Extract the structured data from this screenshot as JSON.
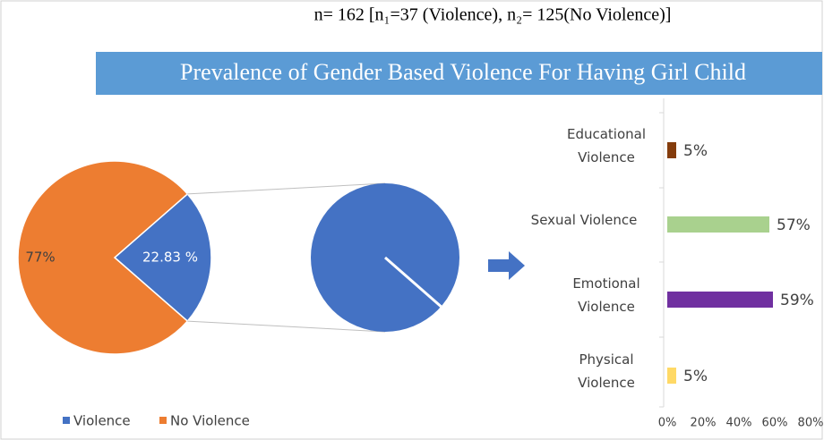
{
  "note_line": "n= 162 [n₁=37 (Violence), n₂= 125(No Violence)]",
  "chart_data": [
    {
      "type": "pie",
      "title": "Prevalence of Gender Based Violence For Having Girl Child",
      "categories": [
        "Violence",
        "No Violence"
      ],
      "values": [
        22.83,
        77
      ],
      "value_labels": [
        "22.83 %",
        "77%"
      ],
      "colors": [
        "#4472c4",
        "#ed7d31"
      ],
      "legend": "bottom"
    },
    {
      "type": "hbar",
      "categories": [
        "Educational Violence",
        "Sexual Violence",
        "Emotional Violence",
        "Physical Violence"
      ],
      "values": [
        5,
        57,
        59,
        5
      ],
      "value_labels": [
        "5%",
        "57%",
        "59%",
        "5%"
      ],
      "colors": [
        "#843c0c",
        "#a9d18e",
        "#7030a0",
        "#ffd966"
      ],
      "xlim": [
        0,
        80
      ],
      "xticks": [
        {
          "value": 0,
          "label": "0%"
        },
        {
          "value": 20,
          "label": "20%"
        },
        {
          "value": 40,
          "label": "40%"
        },
        {
          "value": 60,
          "label": "60%"
        },
        {
          "value": 80,
          "label": "80%"
        }
      ]
    }
  ]
}
